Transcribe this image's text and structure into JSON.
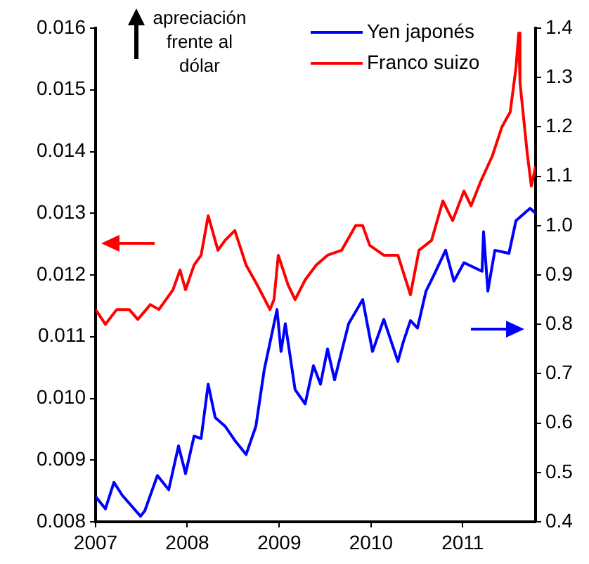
{
  "chart_data": {
    "type": "line",
    "legend": "top right",
    "marker": "none",
    "line_style": "solid",
    "grid": false,
    "xlim": [
      "2007-01-01",
      "2011-10-18"
    ],
    "xticks": [
      {
        "value": "2007",
        "label": "2007"
      },
      {
        "value": "2008",
        "label": "2008"
      },
      {
        "value": "2009",
        "label": "2009"
      },
      {
        "value": "2010",
        "label": "2010"
      },
      {
        "value": "2011",
        "label": "2011"
      }
    ],
    "ylim": [
      0.008,
      0.016
    ],
    "yticks": [
      {
        "value": 0.008,
        "label": "0.008"
      },
      {
        "value": 0.009,
        "label": "0.009"
      },
      {
        "value": 0.01,
        "label": "0.010"
      },
      {
        "value": 0.011,
        "label": "0.011"
      },
      {
        "value": 0.012,
        "label": "0.012"
      },
      {
        "value": 0.013,
        "label": "0.013"
      },
      {
        "value": 0.014,
        "label": "0.014"
      },
      {
        "value": 0.015,
        "label": "0.015"
      },
      {
        "value": 0.016,
        "label": "0.016"
      }
    ],
    "y2lim": [
      0.4,
      1.4
    ],
    "y2ticks": [
      {
        "value": 0.4,
        "label": "0.4"
      },
      {
        "value": 0.5,
        "label": "0.5"
      },
      {
        "value": 0.6,
        "label": "0.6"
      },
      {
        "value": 0.7,
        "label": "0.7"
      },
      {
        "value": 0.8,
        "label": "0.8"
      },
      {
        "value": 0.9,
        "label": "0.9"
      },
      {
        "value": 1.0,
        "label": "1.0"
      },
      {
        "value": 1.1,
        "label": "1.1"
      },
      {
        "value": 1.2,
        "label": "1.2"
      },
      {
        "value": 1.3,
        "label": "1.3"
      },
      {
        "value": 1.4,
        "label": "1.4"
      }
    ],
    "annotations": [
      "apreciación frente al dólar"
    ],
    "series": [
      {
        "name": "Yen japonés",
        "color": "#0000ff",
        "axis": "y",
        "x": [
          "2007-01-01",
          "2007-02-09",
          "2007-03-15",
          "2007-04-17",
          "2007-06-29",
          "2007-07-16",
          "2007-09-04",
          "2007-10-19",
          "2007-11-27",
          "2007-12-25",
          "2008-01-28",
          "2008-02-25",
          "2008-03-24",
          "2008-04-21",
          "2008-05-30",
          "2008-07-08",
          "2008-08-22",
          "2008-09-30",
          "2008-11-02",
          "2008-12-23",
          "2009-01-08",
          "2009-01-25",
          "2009-03-05",
          "2009-04-14",
          "2009-05-17",
          "2009-06-14",
          "2009-07-12",
          "2009-08-09",
          "2009-10-04",
          "2009-11-29",
          "2010-01-07",
          "2010-02-21",
          "2010-04-18",
          "2010-05-10",
          "2010-06-07",
          "2010-07-05",
          "2010-08-08",
          "2010-09-05",
          "2010-10-25",
          "2010-11-27",
          "2011-01-06",
          "2011-03-19",
          "2011-03-25",
          "2011-04-11",
          "2011-05-09",
          "2011-07-04",
          "2011-08-01",
          "2011-09-26",
          "2011-10-18"
        ],
        "values": [
          0.00841,
          0.00821,
          0.00864,
          0.00843,
          0.00809,
          0.00818,
          0.00875,
          0.00852,
          0.00923,
          0.00878,
          0.00939,
          0.00935,
          0.01023,
          0.00969,
          0.00955,
          0.00932,
          0.00909,
          0.00955,
          0.01046,
          0.01144,
          0.01076,
          0.01121,
          0.01014,
          0.00991,
          0.01053,
          0.01023,
          0.0108,
          0.0103,
          0.01121,
          0.0116,
          0.01076,
          0.01128,
          0.0106,
          0.01092,
          0.01126,
          0.01114,
          0.01174,
          0.01197,
          0.0124,
          0.0119,
          0.0122,
          0.01206,
          0.0127,
          0.01174,
          0.0124,
          0.01235,
          0.01288,
          0.01308,
          0.013
        ]
      },
      {
        "name": "Franco suizo",
        "color": "#ff0000",
        "axis": "y2",
        "x": [
          "2007-01-01",
          "2007-02-09",
          "2007-03-26",
          "2007-05-15",
          "2007-06-18",
          "2007-08-07",
          "2007-09-10",
          "2007-11-05",
          "2007-12-03",
          "2007-12-25",
          "2008-01-28",
          "2008-02-25",
          "2008-03-24",
          "2008-05-02",
          "2008-05-30",
          "2008-07-08",
          "2008-08-22",
          "2008-10-05",
          "2008-11-25",
          "2008-12-11",
          "2008-12-28",
          "2009-02-05",
          "2009-03-05",
          "2009-04-14",
          "2009-05-28",
          "2009-07-12",
          "2009-09-06",
          "2009-11-01",
          "2009-11-29",
          "2009-12-27",
          "2010-02-21",
          "2010-04-18",
          "2010-06-07",
          "2010-07-11",
          "2010-08-30",
          "2010-10-14",
          "2010-11-22",
          "2011-01-06",
          "2011-02-03",
          "2011-03-14",
          "2011-04-28",
          "2011-06-06",
          "2011-07-09",
          "2011-08-01",
          "2011-08-12",
          "2011-08-17",
          "2011-09-14",
          "2011-10-01",
          "2011-10-18"
        ],
        "values": [
          0.83,
          0.8,
          0.83,
          0.83,
          0.81,
          0.84,
          0.83,
          0.87,
          0.91,
          0.87,
          0.92,
          0.94,
          1.02,
          0.95,
          0.97,
          0.99,
          0.92,
          0.88,
          0.83,
          0.85,
          0.94,
          0.88,
          0.85,
          0.89,
          0.92,
          0.94,
          0.95,
          1.0,
          1.0,
          0.96,
          0.94,
          0.94,
          0.86,
          0.95,
          0.97,
          1.05,
          1.01,
          1.07,
          1.04,
          1.09,
          1.14,
          1.2,
          1.23,
          1.32,
          1.39,
          1.29,
          1.15,
          1.08,
          1.12
        ]
      }
    ]
  }
}
